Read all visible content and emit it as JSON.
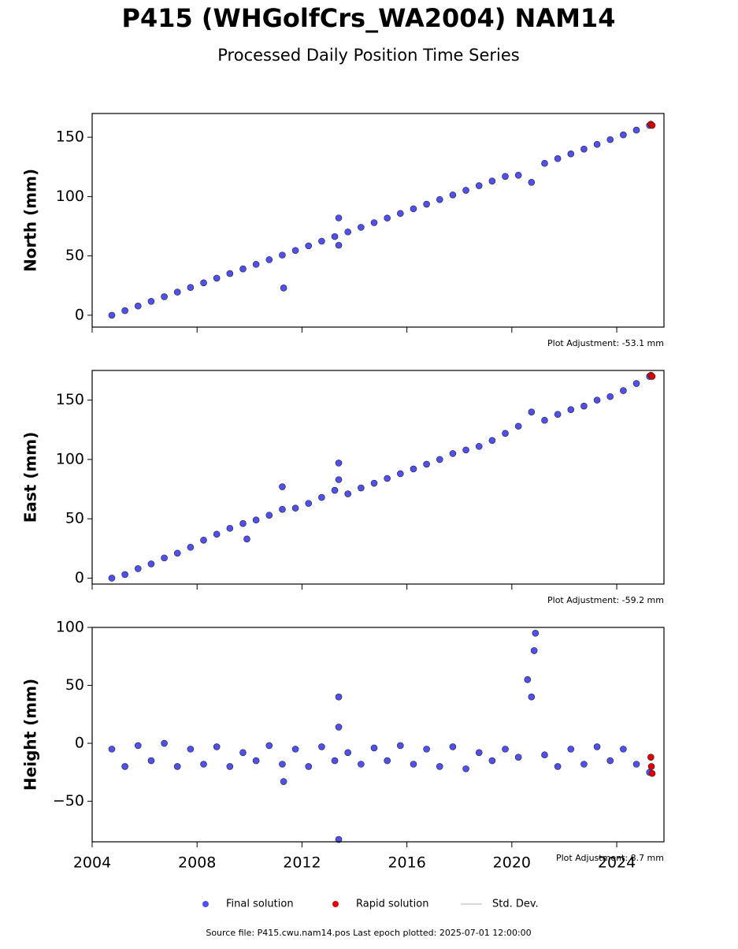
{
  "title": "P415 (WHGolfCrs_WA2004) NAM14",
  "subtitle": "Processed Daily Position Time Series",
  "std_dev_label": "Std. Dev.",
  "source": "Source file: P415.cwu.nam14.pos  Last epoch plotted: 2025-07-01 12:00:00",
  "chart_data": [
    {
      "type": "scatter",
      "ylabel": "North (mm)",
      "note": "Plot Adjustment: -53.1 mm",
      "ylim": [
        -10,
        170
      ],
      "yticks": [
        0,
        50,
        100,
        150
      ],
      "series": [
        {
          "name": "Final solution",
          "color": "#5050f0",
          "x": [
            2004.75,
            2005.25,
            2005.75,
            2006.25,
            2006.75,
            2007.25,
            2007.75,
            2008.25,
            2008.75,
            2009.25,
            2009.75,
            2010.25,
            2010.75,
            2011.25,
            2011.75,
            2012.25,
            2012.75,
            2013.25,
            2013.75,
            2014.25,
            2014.75,
            2015.25,
            2015.75,
            2016.25,
            2016.75,
            2017.25,
            2017.75,
            2018.25,
            2018.75,
            2019.25,
            2019.75,
            2020.25,
            2020.75,
            2021.25,
            2021.75,
            2022.25,
            2022.75,
            2023.25,
            2023.75,
            2024.25,
            2024.75,
            2025.25,
            2011.3,
            2013.4,
            2013.4
          ],
          "values": [
            0,
            3.9,
            7.8,
            11.7,
            15.6,
            19.5,
            23.4,
            27.3,
            31.2,
            35.1,
            39,
            42.9,
            46.8,
            50.7,
            54.6,
            58.5,
            62.4,
            66.3,
            70.2,
            74.1,
            78,
            81.9,
            85.8,
            89.7,
            93.6,
            97.5,
            101.4,
            105.3,
            109.2,
            113.1,
            117,
            118,
            112,
            128,
            132,
            136,
            140,
            144,
            148,
            152,
            156,
            160,
            23,
            82,
            59
          ]
        },
        {
          "name": "Rapid solution",
          "color": "#e00000",
          "x": [
            2025.3,
            2025.35
          ],
          "values": [
            161,
            160
          ]
        }
      ]
    },
    {
      "type": "scatter",
      "ylabel": "East (mm)",
      "note": "Plot Adjustment: -59.2 mm",
      "ylim": [
        -5,
        175
      ],
      "yticks": [
        0,
        50,
        100,
        150
      ],
      "series": [
        {
          "name": "Final solution",
          "color": "#5050f0",
          "x": [
            2004.75,
            2005.25,
            2005.75,
            2006.25,
            2006.75,
            2007.25,
            2007.75,
            2008.25,
            2008.75,
            2009.25,
            2009.75,
            2010.25,
            2010.75,
            2011.25,
            2011.75,
            2012.25,
            2012.75,
            2013.25,
            2013.75,
            2014.25,
            2014.75,
            2015.25,
            2015.75,
            2016.25,
            2016.75,
            2017.25,
            2017.75,
            2018.25,
            2018.75,
            2019.25,
            2019.75,
            2020.25,
            2020.75,
            2021.25,
            2021.75,
            2022.25,
            2022.75,
            2023.25,
            2023.75,
            2024.25,
            2024.75,
            2025.25,
            2011.25,
            2013.4,
            2013.4,
            2009.9
          ],
          "values": [
            0,
            3,
            8,
            12,
            17,
            21,
            26,
            32,
            37,
            42,
            46,
            49,
            53,
            58,
            59,
            63,
            68,
            74,
            71,
            76,
            80,
            84,
            88,
            92,
            96,
            100,
            105,
            108,
            111,
            116,
            122,
            128,
            140,
            133,
            138,
            142,
            145,
            150,
            153,
            158,
            164,
            170,
            77,
            97,
            83,
            33
          ]
        },
        {
          "name": "Rapid solution",
          "color": "#e00000",
          "x": [
            2025.3,
            2025.35
          ],
          "values": [
            171,
            170
          ]
        }
      ]
    },
    {
      "type": "scatter",
      "ylabel": "Height (mm)",
      "note": "Plot Adjustment: 8.7 mm",
      "ylim": [
        -85,
        100
      ],
      "yticks": [
        {
          "value": -50,
          "label": "−50"
        },
        0,
        50,
        100
      ],
      "xlim": [
        2004,
        2025.8
      ],
      "xticks": [
        2004,
        2008,
        2012,
        2016,
        2020,
        2024
      ],
      "series": [
        {
          "name": "Final solution",
          "color": "#5050f0",
          "x": [
            2004.75,
            2005.25,
            2005.75,
            2006.25,
            2006.75,
            2007.25,
            2007.75,
            2008.25,
            2008.75,
            2009.25,
            2009.75,
            2010.25,
            2010.75,
            2011.25,
            2011.75,
            2012.25,
            2012.75,
            2013.25,
            2013.75,
            2014.25,
            2014.75,
            2015.25,
            2015.75,
            2016.25,
            2016.75,
            2017.25,
            2017.75,
            2018.25,
            2018.75,
            2019.25,
            2019.75,
            2020.25,
            2020.75,
            2021.25,
            2021.75,
            2022.25,
            2022.75,
            2023.25,
            2023.75,
            2024.25,
            2024.75,
            2025.25,
            2013.4,
            2013.4,
            2013.4,
            2020.9,
            2020.85,
            2020.6,
            2011.3
          ],
          "values": [
            -5,
            -20,
            -2,
            -15,
            0,
            -20,
            -5,
            -18,
            -3,
            -20,
            -8,
            -15,
            -2,
            -18,
            -5,
            -20,
            -3,
            -15,
            -8,
            -18,
            -4,
            -15,
            -2,
            -18,
            -5,
            -20,
            -3,
            -22,
            -8,
            -15,
            -5,
            -12,
            40,
            -10,
            -20,
            -5,
            -18,
            -3,
            -15,
            -5,
            -18,
            -25,
            40,
            14,
            -83,
            95,
            80,
            55,
            -33
          ]
        },
        {
          "name": "Rapid solution",
          "color": "#e00000",
          "x": [
            2025.3,
            2025.32,
            2025.35
          ],
          "values": [
            -12,
            -20,
            -26
          ]
        }
      ]
    }
  ]
}
